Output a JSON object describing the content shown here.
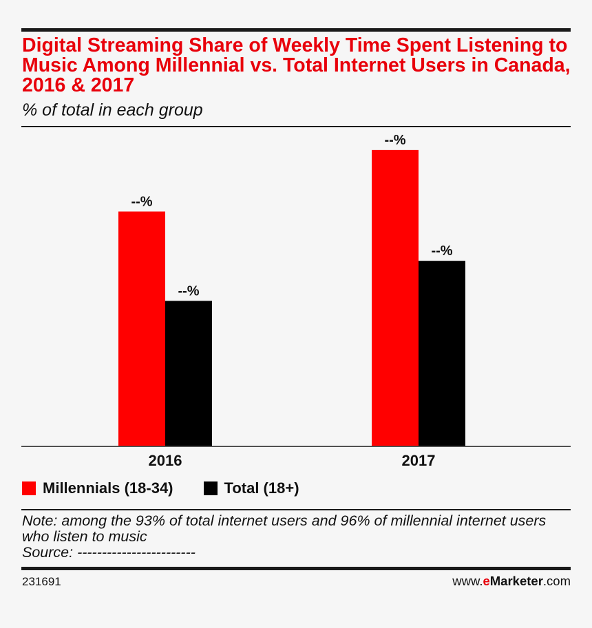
{
  "header": {
    "title": "Digital Streaming Share of Weekly Time Spent Listening to Music Among Millennial vs. Total Internet Users in Canada, 2016 & 2017",
    "subtitle": "% of total in each group"
  },
  "chart_data": {
    "type": "bar",
    "categories": [
      "2016",
      "2017"
    ],
    "series": [
      {
        "name": "Millennials (18-34)",
        "values": [
          76,
          96
        ],
        "labels": [
          "--%",
          "--%"
        ],
        "color": "#ff0000"
      },
      {
        "name": "Total (18+)",
        "values": [
          47,
          60
        ],
        "labels": [
          "--%",
          "--%"
        ],
        "color": "#000000"
      }
    ],
    "ylim": [
      0,
      100
    ],
    "grid": false,
    "legend_position": "bottom-left",
    "xlabel": "",
    "ylabel": ""
  },
  "notes": {
    "note": "Note: among the 93% of total internet users and 96% of millennial internet users who listen to music",
    "source": "Source: ------------------------"
  },
  "footer": {
    "id": "231691",
    "brand_prefix": "www.",
    "brand_e": "e",
    "brand_marketer": "Marketer",
    "brand_suffix": ".com"
  }
}
